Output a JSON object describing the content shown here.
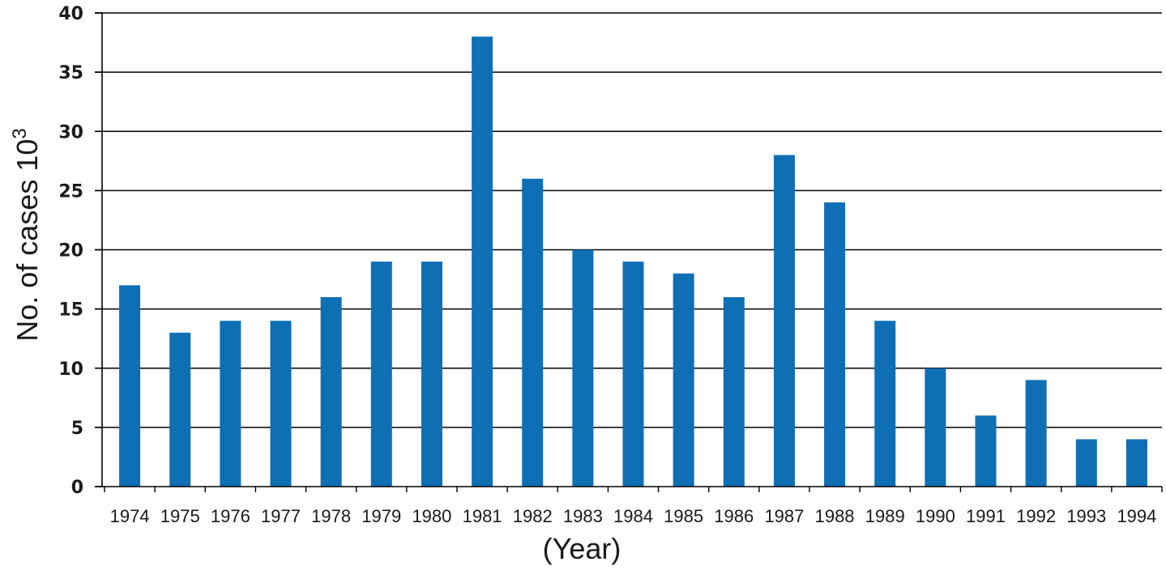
{
  "chart_data": {
    "type": "bar",
    "title": "",
    "ylabel": "No. of cases 10",
    "ylabel_superscript": "3",
    "xlabel": "(Year)",
    "ylim": [
      0,
      40
    ],
    "yticks": [
      "0",
      "5",
      "10",
      "15",
      "20",
      "25",
      "30",
      "35",
      "40"
    ],
    "grid": true,
    "bar_color": "#0E6FB5",
    "categories": [
      "1974",
      "1975",
      "1976",
      "1977",
      "1978",
      "1979",
      "1980",
      "1981",
      "1982",
      "1983",
      "1984",
      "1985",
      "1986",
      "1987",
      "1988",
      "1989",
      "1990",
      "1991",
      "1992",
      "1993",
      "1994"
    ],
    "values": [
      17,
      13,
      14,
      14,
      16,
      19,
      19,
      38,
      26,
      20,
      19,
      18,
      16,
      28,
      24,
      14,
      10,
      6,
      9,
      4,
      4
    ]
  }
}
